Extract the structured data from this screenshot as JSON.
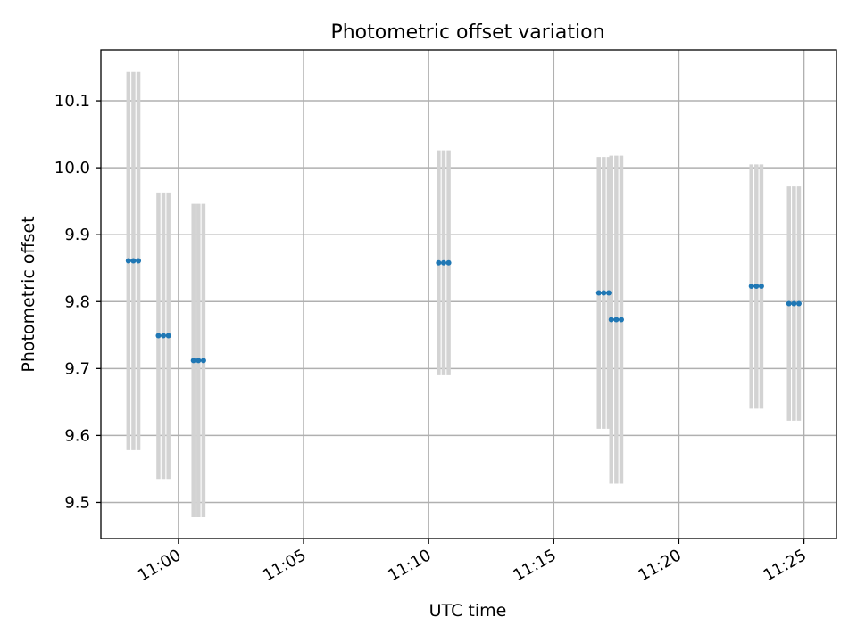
{
  "chart_data": {
    "type": "scatter",
    "title": "Photometric offset variation",
    "xlabel": "UTC time",
    "ylabel": "Photometric offset",
    "x_ticks": [
      "11:00",
      "11:05",
      "11:10",
      "11:15",
      "11:20",
      "11:25"
    ],
    "y_ticks": [
      "9.5",
      "9.6",
      "9.7",
      "9.8",
      "9.9",
      "10.0",
      "10.1"
    ],
    "xlim": [
      "10:56:54",
      "11:26:18"
    ],
    "ylim": [
      9.446,
      10.176
    ],
    "grid": true,
    "colors": {
      "marker": "#1f77b4",
      "errorbar": "#d3d3d3",
      "grid": "#b0b0b0"
    },
    "series": [
      {
        "points": [
          {
            "time": "10:58:00",
            "y": 9.861,
            "ymin": 9.578,
            "ymax": 10.143
          },
          {
            "time": "10:58:12",
            "y": 9.861,
            "ymin": 9.578,
            "ymax": 10.143
          },
          {
            "time": "10:58:24",
            "y": 9.861,
            "ymin": 9.578,
            "ymax": 10.143
          },
          {
            "time": "10:59:12",
            "y": 9.749,
            "ymin": 9.535,
            "ymax": 9.963
          },
          {
            "time": "10:59:24",
            "y": 9.749,
            "ymin": 9.535,
            "ymax": 9.963
          },
          {
            "time": "10:59:36",
            "y": 9.749,
            "ymin": 9.535,
            "ymax": 9.963
          },
          {
            "time": "11:00:36",
            "y": 9.712,
            "ymin": 9.478,
            "ymax": 9.946
          },
          {
            "time": "11:00:48",
            "y": 9.712,
            "ymin": 9.478,
            "ymax": 9.946
          },
          {
            "time": "11:01:00",
            "y": 9.712,
            "ymin": 9.478,
            "ymax": 9.946
          },
          {
            "time": "11:10:24",
            "y": 9.858,
            "ymin": 9.69,
            "ymax": 10.026
          },
          {
            "time": "11:10:36",
            "y": 9.858,
            "ymin": 9.69,
            "ymax": 10.026
          },
          {
            "time": "11:10:48",
            "y": 9.858,
            "ymin": 9.69,
            "ymax": 10.026
          },
          {
            "time": "11:16:48",
            "y": 9.813,
            "ymin": 9.61,
            "ymax": 10.016
          },
          {
            "time": "11:17:00",
            "y": 9.813,
            "ymin": 9.61,
            "ymax": 10.016
          },
          {
            "time": "11:17:12",
            "y": 9.813,
            "ymin": 9.61,
            "ymax": 10.016
          },
          {
            "time": "11:17:18",
            "y": 9.773,
            "ymin": 9.528,
            "ymax": 10.018
          },
          {
            "time": "11:17:30",
            "y": 9.773,
            "ymin": 9.528,
            "ymax": 10.018
          },
          {
            "time": "11:17:42",
            "y": 9.773,
            "ymin": 9.528,
            "ymax": 10.018
          },
          {
            "time": "11:22:54",
            "y": 9.823,
            "ymin": 9.64,
            "ymax": 10.005
          },
          {
            "time": "11:23:06",
            "y": 9.823,
            "ymin": 9.64,
            "ymax": 10.005
          },
          {
            "time": "11:23:18",
            "y": 9.823,
            "ymin": 9.64,
            "ymax": 10.005
          },
          {
            "time": "11:24:24",
            "y": 9.797,
            "ymin": 9.622,
            "ymax": 9.972
          },
          {
            "time": "11:24:36",
            "y": 9.797,
            "ymin": 9.622,
            "ymax": 9.972
          },
          {
            "time": "11:24:48",
            "y": 9.797,
            "ymin": 9.622,
            "ymax": 9.972
          }
        ]
      }
    ]
  }
}
